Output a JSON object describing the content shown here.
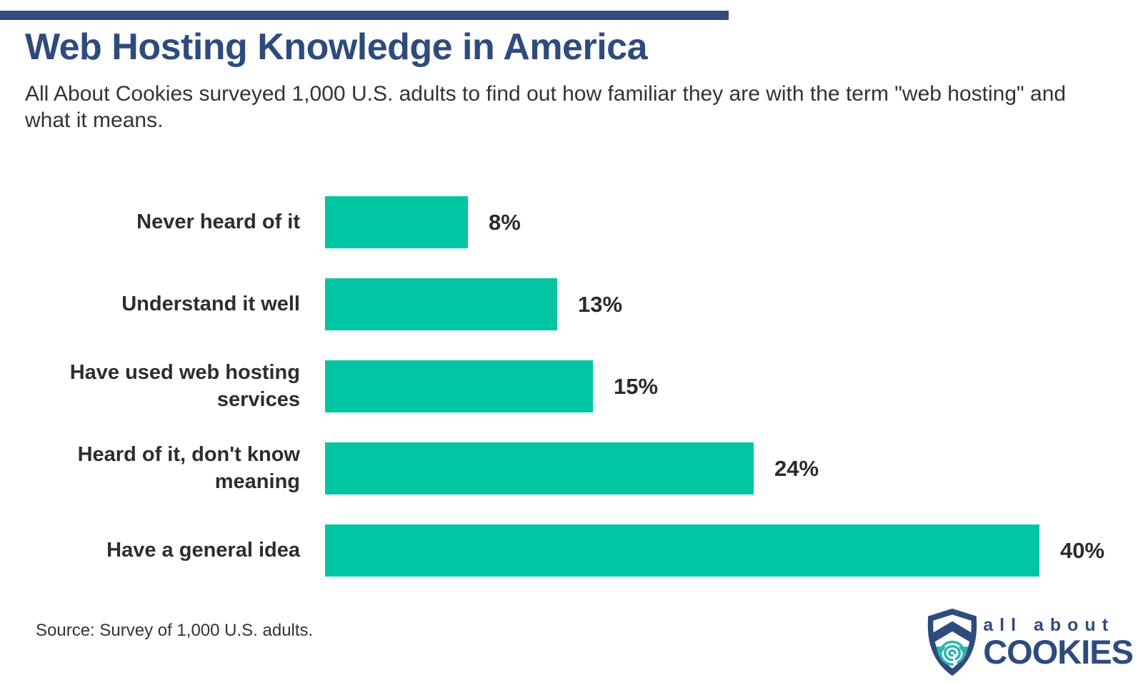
{
  "header": {
    "title": "Web Hosting Knowledge in America",
    "subtitle": "All About Cookies surveyed 1,000 U.S. adults to find out how familiar they are with the term \"web hosting\" and what it means."
  },
  "chart_data": {
    "type": "bar",
    "orientation": "horizontal",
    "title": "Web Hosting Knowledge in America",
    "categories": [
      "Never heard of it",
      "Understand it well",
      "Have used web hosting services",
      "Heard of it, don't know meaning",
      "Have a general idea"
    ],
    "values": [
      8,
      13,
      15,
      24,
      40
    ],
    "value_labels": [
      "8%",
      "13%",
      "15%",
      "24%",
      "40%"
    ],
    "xlabel": "",
    "ylabel": "",
    "xlim": [
      0,
      40
    ],
    "grid": false,
    "legend": false,
    "bar_color": "#00C5A3"
  },
  "colors": {
    "accent_navy": "#2E4B7E",
    "top_bar_navy": "#36497C",
    "bar_teal": "#00C5A3",
    "logo_fingerprint_teal": "#2BB5AC",
    "text_dark": "#2d2d2d"
  },
  "footer": {
    "source": "Source: Survey of 1,000 U.S. adults.",
    "logo": {
      "line1": "all about",
      "line2": "COOKIES",
      "icon": "shield-fingerprint-icon"
    }
  }
}
